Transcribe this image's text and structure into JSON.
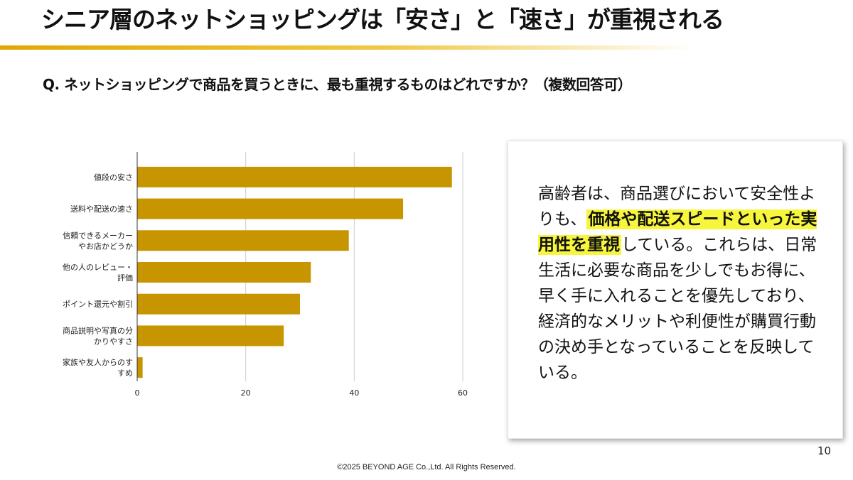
{
  "slide": {
    "title": "シニア層のネットショッピングは「安さ」と「速さ」が重視される",
    "question": "Q. ネットショッピングで商品を買うときに、最も重視するものはどれですか？（複数回答可）",
    "page_number": "10",
    "footer": "©2025 BEYOND AGE Co.,Ltd. All Rights Reserved."
  },
  "callout": {
    "text_before": "高齢者は、商品選びにおいて安全性よりも、",
    "text_highlight": "価格や配送スピードといった実用性を重視",
    "text_after": "している。これらは、日常生活に必要な商品を少しでもお得に、早く手に入れることを優先しており、経済的なメリットや利便性が購買行動の決め手となっていることを反映している。",
    "highlight_color": "#f7f53c"
  },
  "colors": {
    "bar": "#c69500",
    "title_rule": "#e0a800",
    "grid": "#cccccc",
    "axis": "#333333"
  },
  "chart_data": {
    "type": "bar",
    "orientation": "horizontal",
    "title": "",
    "xlabel": "",
    "ylabel": "",
    "xlim": [
      0,
      60
    ],
    "xticks": [
      0,
      20,
      40,
      60
    ],
    "grid": true,
    "legend": "none",
    "categories": [
      [
        "値段の安さ"
      ],
      [
        "送料や配送の速さ"
      ],
      [
        "信頼できるメーカー",
        "やお店かどうか"
      ],
      [
        "他の人のレビュー・",
        "評価"
      ],
      [
        "ポイント還元や割引"
      ],
      [
        "商品説明や写真の分",
        "かりやすさ"
      ],
      [
        "家族や友人からのす",
        "すめ"
      ]
    ],
    "values": [
      58,
      49,
      39,
      32,
      30,
      27,
      1
    ]
  }
}
